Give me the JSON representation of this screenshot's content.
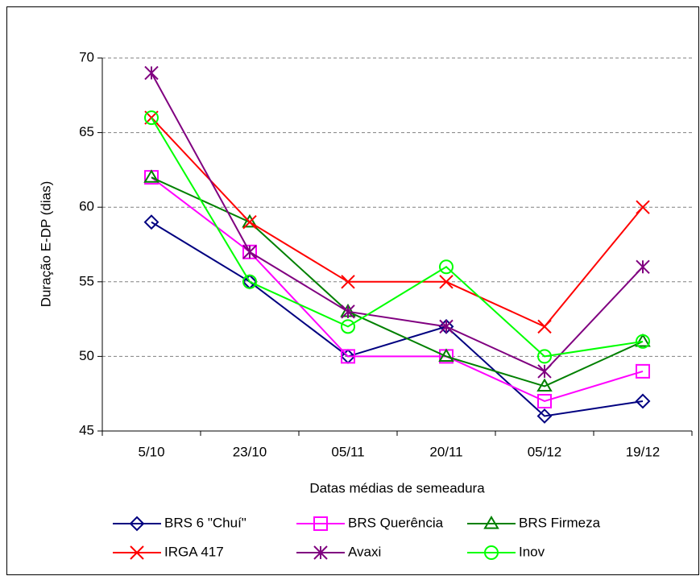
{
  "chart_data": {
    "type": "line",
    "x_label": "Datas médias de semeadura",
    "y_label": "Duração E-DP (dias)",
    "categories": [
      "5/10",
      "23/10",
      "05/11",
      "20/11",
      "05/12",
      "19/12"
    ],
    "series": [
      {
        "name": "BRS 6 \"Chuí\"",
        "color": "#000080",
        "marker": "diamond",
        "values": [
          59,
          55,
          50,
          52,
          46,
          47
        ]
      },
      {
        "name": "BRS Querência",
        "color": "#ff00ff",
        "marker": "square",
        "values": [
          62,
          57,
          50,
          50,
          47,
          49
        ]
      },
      {
        "name": "BRS Firmeza",
        "color": "#008000",
        "marker": "triangle",
        "values": [
          62,
          59,
          53,
          50,
          48,
          51
        ]
      },
      {
        "name": "IRGA 417",
        "color": "#ff0000",
        "marker": "x",
        "values": [
          66,
          59,
          55,
          55,
          52,
          60
        ]
      },
      {
        "name": "Avaxi",
        "color": "#800080",
        "marker": "star",
        "values": [
          69,
          57,
          53,
          52,
          49,
          56
        ]
      },
      {
        "name": "Inov",
        "color": "#00ff00",
        "marker": "circle",
        "values": [
          66,
          55,
          52,
          56,
          50,
          51
        ]
      }
    ],
    "ylim": [
      45,
      70
    ],
    "yticks": [
      45,
      50,
      55,
      60,
      65,
      70
    ],
    "grid": true,
    "legend": "bottom"
  }
}
